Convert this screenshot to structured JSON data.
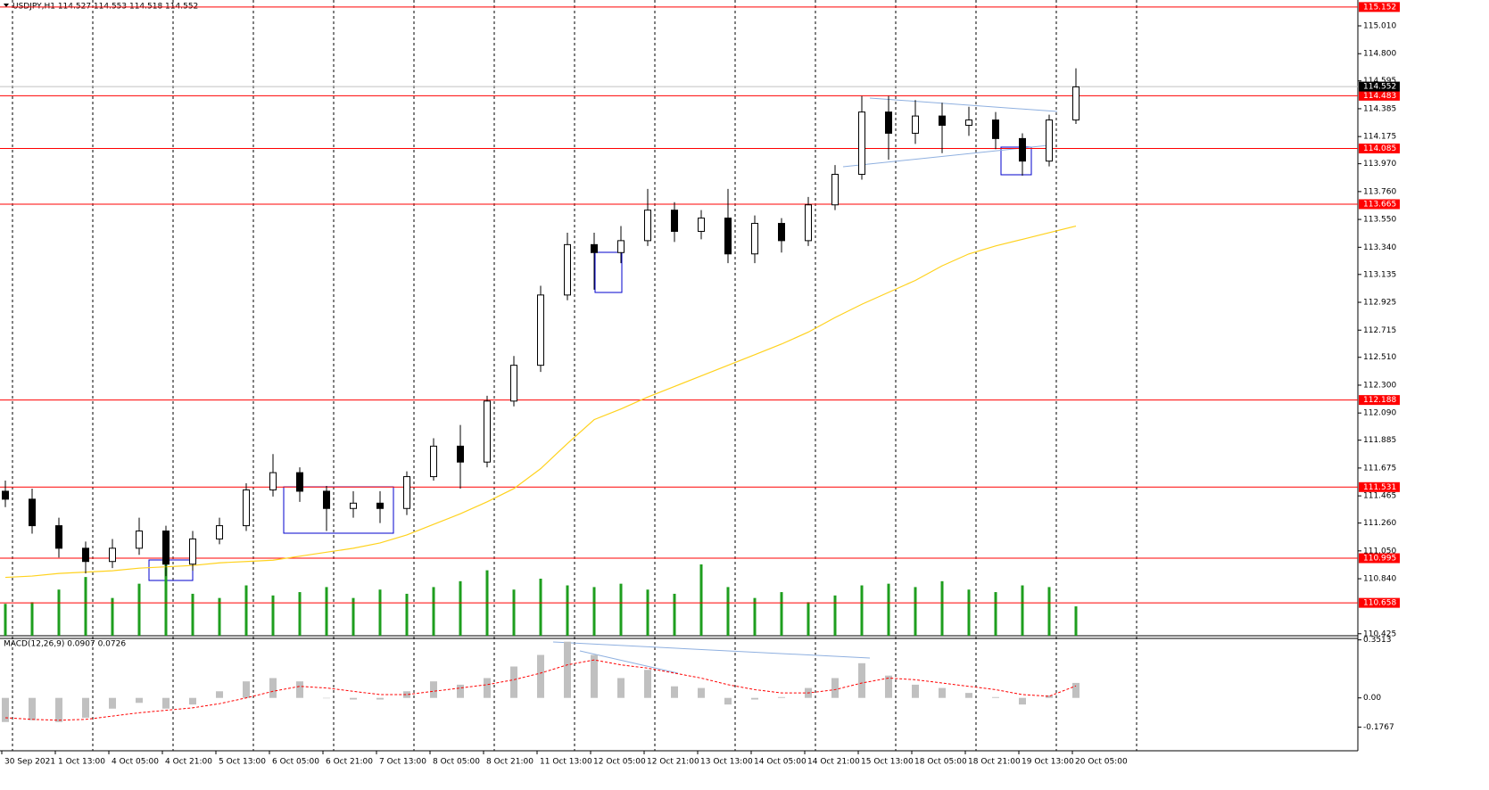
{
  "chart_data": [
    {
      "type": "candlestick",
      "title": "USDJPY,H1  114.527 114.553 114.518 114.552",
      "xticks": [
        "30 Sep 2021",
        "1 Oct 13:00",
        "4 Oct 05:00",
        "4 Oct 21:00",
        "5 Oct 13:00",
        "6 Oct 05:00",
        "6 Oct 21:00",
        "7 Oct 13:00",
        "8 Oct 05:00",
        "8 Oct 21:00",
        "11 Oct 13:00",
        "12 Oct 05:00",
        "12 Oct 21:00",
        "13 Oct 13:00",
        "14 Oct 05:00",
        "14 Oct 21:00",
        "15 Oct 13:00",
        "18 Oct 05:00",
        "18 Oct 21:00",
        "19 Oct 13:00",
        "20 Oct 05:00"
      ],
      "open": [
        111.5,
        111.44,
        111.24,
        111.07,
        110.97,
        111.07,
        111.2,
        110.95,
        111.14,
        111.24,
        111.51,
        111.64,
        111.5,
        111.37,
        111.41,
        111.37,
        111.61,
        111.84,
        111.72,
        112.18,
        112.45,
        112.98,
        113.36,
        113.3,
        113.39,
        113.62,
        113.46,
        113.56,
        113.29,
        113.52,
        113.39,
        113.66,
        113.89,
        114.36,
        114.2,
        114.33,
        114.26,
        114.3,
        114.16,
        113.99,
        114.3
      ],
      "high": [
        111.58,
        111.52,
        111.3,
        111.12,
        111.14,
        111.3,
        111.24,
        111.2,
        111.3,
        111.56,
        111.78,
        111.68,
        111.54,
        111.5,
        111.5,
        111.65,
        111.9,
        112.0,
        112.22,
        112.52,
        113.05,
        113.45,
        113.45,
        113.5,
        113.78,
        113.68,
        113.62,
        113.78,
        113.58,
        113.56,
        113.72,
        113.96,
        114.48,
        114.48,
        114.45,
        114.43,
        114.4,
        114.36,
        114.2,
        114.34,
        114.69
      ],
      "low": [
        111.38,
        111.18,
        111.0,
        110.88,
        110.92,
        111.02,
        110.86,
        110.9,
        111.1,
        111.2,
        111.46,
        111.42,
        111.2,
        111.3,
        111.26,
        111.32,
        111.58,
        111.52,
        111.68,
        112.14,
        112.4,
        112.94,
        113.02,
        113.22,
        113.35,
        113.38,
        113.4,
        113.22,
        113.22,
        113.3,
        113.35,
        113.62,
        113.85,
        114.0,
        114.12,
        114.05,
        114.18,
        114.08,
        113.88,
        113.95,
        114.27
      ],
      "close": [
        111.44,
        111.24,
        111.07,
        110.97,
        111.07,
        111.2,
        110.95,
        111.14,
        111.24,
        111.51,
        111.64,
        111.5,
        111.37,
        111.41,
        111.37,
        111.61,
        111.84,
        111.72,
        112.18,
        112.45,
        112.98,
        113.36,
        113.3,
        113.39,
        113.62,
        113.46,
        113.56,
        113.29,
        113.52,
        113.39,
        113.66,
        113.89,
        114.36,
        114.2,
        114.33,
        114.26,
        114.3,
        114.16,
        113.99,
        114.3,
        114.55
      ],
      "volume": [
        38,
        40,
        55,
        70,
        45,
        62,
        85,
        50,
        45,
        60,
        48,
        52,
        58,
        45,
        55,
        50,
        58,
        65,
        78,
        55,
        68,
        60,
        58,
        62,
        55,
        50,
        85,
        58,
        45,
        52,
        40,
        48,
        60,
        62,
        58,
        65,
        55,
        52,
        60,
        58,
        35
      ],
      "volume_color": "#1e9e1e",
      "ma": [
        110.85,
        110.86,
        110.88,
        110.89,
        110.9,
        110.92,
        110.93,
        110.94,
        110.96,
        110.97,
        110.98,
        111.01,
        111.04,
        111.07,
        111.11,
        111.17,
        111.25,
        111.33,
        111.42,
        111.52,
        111.67,
        111.86,
        112.04,
        112.12,
        112.21,
        112.29,
        112.37,
        112.45,
        112.53,
        112.61,
        112.7,
        112.81,
        112.91,
        113.0,
        113.09,
        113.2,
        113.29,
        113.35,
        113.4,
        113.45,
        113.5
      ],
      "ma_color": "#ffd21e",
      "levels": [
        115.152,
        114.483,
        114.085,
        113.665,
        112.188,
        111.531,
        110.995,
        110.658
      ],
      "level_color": "#ff0000",
      "current_price": 114.552,
      "ylim": [
        110.41,
        115.205
      ],
      "yticks": [
        {
          "value": 115.01,
          "label": "115.010"
        },
        {
          "value": 114.8,
          "label": "114.800"
        },
        114.595,
        114.385,
        114.175,
        {
          "value": 113.97,
          "label": "113.970"
        },
        {
          "value": 113.76,
          "label": "113.760"
        },
        {
          "value": 113.55,
          "label": "113.550"
        },
        {
          "value": 113.34,
          "label": "113.340"
        },
        113.135,
        112.925,
        112.715,
        {
          "value": 112.51,
          "label": "112.510"
        },
        {
          "value": 112.3,
          "label": "112.300"
        },
        {
          "value": 112.09,
          "label": "112.090"
        },
        111.885,
        111.675,
        111.465,
        {
          "value": 111.26,
          "label": "111.260"
        },
        {
          "value": 111.05,
          "label": "111.050"
        },
        {
          "value": 110.84,
          "label": "110.840"
        },
        110.425
      ]
    },
    {
      "type": "macd",
      "title": "MACD(12,26,9) 0.0907 0.0726",
      "histogram": [
        -0.146,
        -0.135,
        -0.146,
        -0.12,
        -0.065,
        -0.03,
        -0.065,
        -0.04,
        0.04,
        0.1,
        0.12,
        0.1,
        0.0,
        -0.01,
        -0.01,
        0.04,
        0.1,
        0.08,
        0.12,
        0.19,
        0.26,
        0.34,
        0.26,
        0.12,
        0.17,
        0.07,
        0.06,
        -0.04,
        -0.01,
        0.005,
        0.06,
        0.12,
        0.21,
        0.135,
        0.08,
        0.06,
        0.03,
        0.005,
        -0.04,
        0.015,
        0.0907
      ],
      "signal": [
        -0.12,
        -0.13,
        -0.135,
        -0.13,
        -0.11,
        -0.09,
        -0.075,
        -0.06,
        -0.035,
        0.0,
        0.04,
        0.07,
        0.06,
        0.04,
        0.02,
        0.02,
        0.04,
        0.06,
        0.08,
        0.11,
        0.15,
        0.2,
        0.23,
        0.2,
        0.18,
        0.15,
        0.12,
        0.08,
        0.05,
        0.03,
        0.03,
        0.05,
        0.09,
        0.12,
        0.11,
        0.09,
        0.07,
        0.05,
        0.02,
        0.01,
        0.0726
      ],
      "histogram_color": "#c0c0c0",
      "signal_color": "#ff0000",
      "ylim": [
        -0.32,
        0.36
      ],
      "yticks": [
        0.3513,
        {
          "value": 0,
          "label": "0.00"
        },
        -0.1767
      ]
    }
  ]
}
